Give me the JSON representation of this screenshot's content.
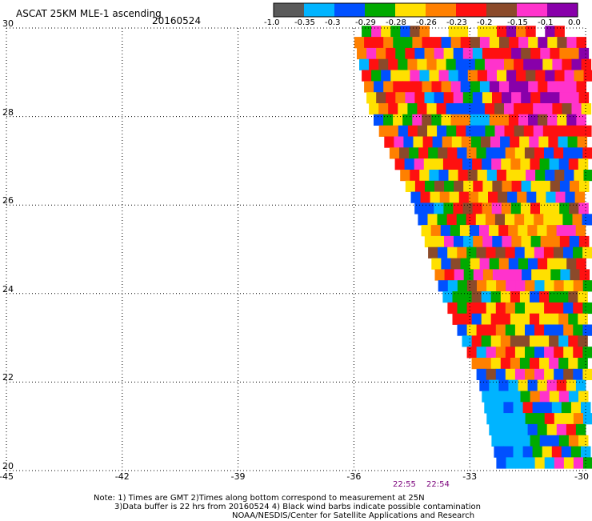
{
  "header": {
    "title": "ASCAT 25KM MLE-1 ascending",
    "date": "20160524"
  },
  "colorbar": {
    "colors": [
      "#5a5a5a",
      "#00b4ff",
      "#0050ff",
      "#00aa00",
      "#ffe000",
      "#ff8000",
      "#ff1010",
      "#8b4a2a",
      "#ff33cc",
      "#8800aa"
    ],
    "tick_labels": [
      "-1.0",
      "-0.35",
      "-0.3",
      "-0.29",
      "-0.28",
      "-0.26",
      "-0.23",
      "-0.2",
      "-0.15",
      "-0.1",
      "0.0"
    ]
  },
  "chart_data": {
    "type": "heatmap",
    "title": "ASCAT 25KM MLE-1 ascending",
    "subtitle": "20160524",
    "x_ticks": [
      "-45",
      "-42",
      "-39",
      "-36",
      "-33",
      "-30"
    ],
    "y_ticks": [
      "20",
      "22",
      "24",
      "26",
      "28",
      "30"
    ],
    "xlim": [
      -45,
      -30
    ],
    "ylim": [
      20,
      30
    ],
    "grid": true,
    "swath_left_edge_lon": [
      [
        30,
        -36.1
      ],
      [
        28,
        -35.6
      ],
      [
        26,
        -34.5
      ],
      [
        24,
        -33.8
      ],
      [
        22,
        -32.8
      ],
      [
        20,
        -32.3
      ]
    ],
    "swath_right_edge_lon": -30,
    "value_range": [
      -1.0,
      0.0
    ],
    "cell_size_deg": 0.25
  },
  "times": [
    "22:55",
    "22:54"
  ],
  "notes": [
    "Note: 1) Times are GMT 2)Times along bottom correspond to measurement at 25N",
    "3)Data buffer is 22 hrs from 20160524 4) Black wind barbs indicate possible contamination",
    "NOAA/NESDIS/Center for Satellite Applications and Research"
  ]
}
